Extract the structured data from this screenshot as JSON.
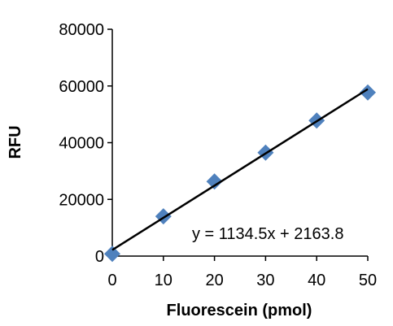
{
  "chart_data": {
    "type": "scatter",
    "title": "",
    "xlabel": "Fluorescein (pmol)",
    "ylabel": "RFU",
    "xlim": [
      0,
      50
    ],
    "ylim": [
      0,
      80000
    ],
    "x_ticks": [
      0,
      10,
      20,
      30,
      40,
      50
    ],
    "y_ticks": [
      0,
      20000,
      40000,
      60000,
      80000
    ],
    "grid": false,
    "legend": "none",
    "series": [
      {
        "marker": "diamond",
        "color": "#4f81bd",
        "points": [
          {
            "x": 0,
            "y": 800
          },
          {
            "x": 10,
            "y": 14000
          },
          {
            "x": 20,
            "y": 26300
          },
          {
            "x": 30,
            "y": 36500
          },
          {
            "x": 40,
            "y": 47800
          },
          {
            "x": 50,
            "y": 57700
          }
        ]
      }
    ],
    "trendline": {
      "type": "linear",
      "slope": 1134.5,
      "intercept": 2163.8,
      "color": "#000000",
      "equation_label": "y = 1134.5x + 2163.8"
    }
  }
}
